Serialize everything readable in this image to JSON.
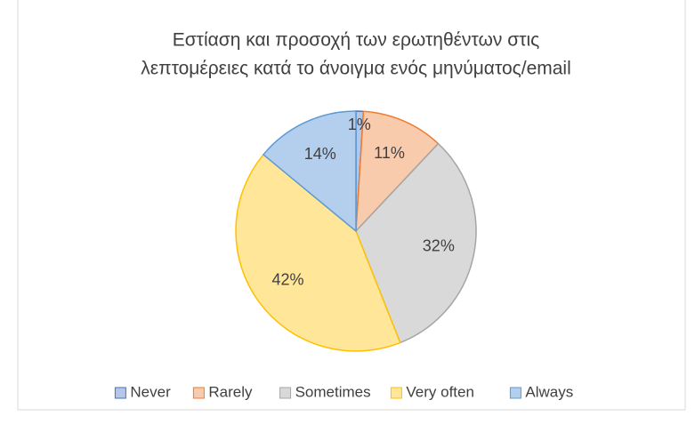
{
  "chart_data": {
    "type": "pie",
    "title": [
      "Εστίαση και προσοχή των ερωτηθέντων στις",
      "λεπτομέρειες κατά το άνοιγμα ενός μηνύματος/email"
    ],
    "categories": [
      "Never",
      "Rarely",
      "Sometimes",
      "Very often",
      "Always"
    ],
    "values": [
      1,
      11,
      32,
      42,
      14
    ],
    "value_labels": [
      "1%",
      "11%",
      "32%",
      "42%",
      "14%"
    ],
    "colors": [
      "#b4c7e7",
      "#f8cbad",
      "#d9d9d9",
      "#ffe699",
      "#b4cfee"
    ],
    "edge_colors": [
      "#4472c4",
      "#ed7d31",
      "#a5a5a5",
      "#ffc000",
      "#5b9bd5"
    ],
    "legend": "bottom"
  }
}
